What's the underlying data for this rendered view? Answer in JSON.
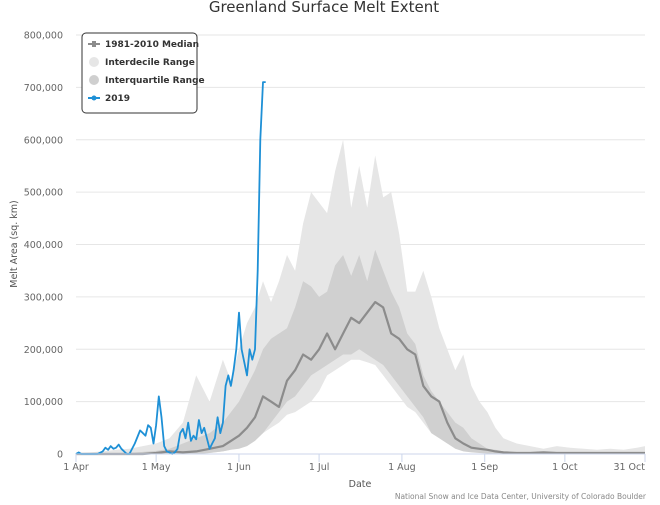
{
  "chart_data": {
    "type": "line",
    "title": "Greenland Surface Melt Extent",
    "xlabel": "Date",
    "ylabel": "Melt Area (sq. km)",
    "credit": "National Snow and Ice Data Center, University of Colorado Boulder",
    "x_unit": "days since 1 Apr",
    "xlim": [
      0,
      213
    ],
    "ylim": [
      0,
      800000
    ],
    "x_ticks": [
      {
        "day": 0,
        "label": "1 Apr"
      },
      {
        "day": 30,
        "label": "1 May"
      },
      {
        "day": 61,
        "label": "1 Jun"
      },
      {
        "day": 91,
        "label": "1 Jul"
      },
      {
        "day": 122,
        "label": "1 Aug"
      },
      {
        "day": 153,
        "label": "1 Sep"
      },
      {
        "day": 183,
        "label": "1 Oct"
      },
      {
        "day": 213,
        "label": "31 Oct"
      }
    ],
    "y_ticks": [
      {
        "value": 0,
        "label": "0"
      },
      {
        "value": 100000,
        "label": "100,000"
      },
      {
        "value": 200000,
        "label": "200,000"
      },
      {
        "value": 300000,
        "label": "300,000"
      },
      {
        "value": 400000,
        "label": "400,000"
      },
      {
        "value": 500000,
        "label": "500,000"
      },
      {
        "value": 600000,
        "label": "600,000"
      },
      {
        "value": 700000,
        "label": "700,000"
      },
      {
        "value": 800000,
        "label": "800,000"
      }
    ],
    "grid": true,
    "legend": {
      "position": "top-left",
      "entries": [
        {
          "label": "1981-2010 Median",
          "color": "#8c8c8c",
          "symbol": "line-marker"
        },
        {
          "label": "Interdecile Range",
          "color": "#e6e6e6",
          "symbol": "circle"
        },
        {
          "label": "Interquartile Range",
          "color": "#cfcfcf",
          "symbol": "circle"
        },
        {
          "label": "2019",
          "color": "#1e90d6",
          "symbol": "line-marker"
        }
      ]
    },
    "colors": {
      "interdecile": "#e6e6e6",
      "interquartile": "#d0d0d0",
      "median": "#8c8c8c",
      "y2019": "#1e90d6",
      "grid": "#e6e6e6",
      "axis": "#ccd6eb"
    },
    "days": [
      0,
      5,
      10,
      15,
      20,
      25,
      30,
      35,
      40,
      45,
      50,
      55,
      58,
      61,
      64,
      67,
      70,
      73,
      76,
      79,
      82,
      85,
      88,
      91,
      94,
      97,
      100,
      103,
      106,
      109,
      112,
      115,
      118,
      121,
      124,
      127,
      130,
      133,
      136,
      139,
      142,
      145,
      148,
      151,
      154,
      157,
      160,
      165,
      170,
      175,
      180,
      185,
      190,
      195,
      200,
      205,
      210,
      213
    ],
    "series": [
      {
        "name": "Interdecile Range",
        "kind": "band",
        "low": [
          0,
          0,
          0,
          0,
          0,
          0,
          0,
          0,
          0,
          0,
          2000,
          5000,
          8000,
          12000,
          20000,
          30000,
          40000,
          50000,
          60000,
          75000,
          80000,
          90000,
          100000,
          120000,
          150000,
          160000,
          170000,
          180000,
          180000,
          175000,
          170000,
          150000,
          130000,
          110000,
          90000,
          80000,
          60000,
          40000,
          30000,
          20000,
          15000,
          10000,
          5000,
          3000,
          2000,
          1000,
          0,
          0,
          0,
          0,
          0,
          0,
          0,
          0,
          0,
          0,
          0,
          0
        ],
        "high": [
          2000,
          3000,
          5000,
          8000,
          10000,
          15000,
          20000,
          30000,
          60000,
          150000,
          100000,
          180000,
          140000,
          200000,
          250000,
          280000,
          330000,
          290000,
          330000,
          380000,
          350000,
          440000,
          500000,
          480000,
          460000,
          540000,
          600000,
          470000,
          550000,
          470000,
          570000,
          490000,
          500000,
          420000,
          310000,
          310000,
          350000,
          300000,
          240000,
          200000,
          160000,
          190000,
          130000,
          100000,
          80000,
          50000,
          30000,
          20000,
          15000,
          10000,
          15000,
          12000,
          10000,
          8000,
          10000,
          8000,
          12000,
          15000
        ]
      },
      {
        "name": "Interquartile Range",
        "kind": "band",
        "low": [
          0,
          0,
          0,
          0,
          0,
          0,
          0,
          0,
          0,
          0,
          2000,
          5000,
          8000,
          10000,
          15000,
          25000,
          40000,
          60000,
          80000,
          100000,
          110000,
          130000,
          150000,
          160000,
          170000,
          180000,
          190000,
          190000,
          200000,
          190000,
          180000,
          170000,
          150000,
          130000,
          110000,
          90000,
          70000,
          40000,
          30000,
          20000,
          10000,
          5000,
          3000,
          2000,
          1000,
          0,
          0,
          0,
          0,
          0,
          0,
          0,
          0,
          0,
          0,
          0,
          0,
          0
        ],
        "high": [
          0,
          0,
          0,
          0,
          2000,
          4000,
          6000,
          10000,
          20000,
          30000,
          40000,
          60000,
          80000,
          100000,
          130000,
          160000,
          200000,
          220000,
          230000,
          240000,
          280000,
          330000,
          320000,
          300000,
          310000,
          360000,
          380000,
          340000,
          380000,
          330000,
          390000,
          350000,
          310000,
          280000,
          230000,
          210000,
          150000,
          120000,
          100000,
          80000,
          60000,
          50000,
          30000,
          20000,
          10000,
          8000,
          5000,
          3000,
          2000,
          2000,
          2000,
          2000,
          2000,
          2000,
          2000,
          2000,
          2000,
          2000
        ]
      },
      {
        "name": "1981-2010 Median",
        "kind": "line",
        "values": [
          0,
          0,
          0,
          0,
          0,
          0,
          2000,
          5000,
          3000,
          5000,
          10000,
          15000,
          25000,
          35000,
          50000,
          70000,
          110000,
          100000,
          90000,
          140000,
          160000,
          190000,
          180000,
          200000,
          230000,
          200000,
          230000,
          260000,
          250000,
          270000,
          290000,
          280000,
          230000,
          220000,
          200000,
          190000,
          130000,
          110000,
          100000,
          60000,
          30000,
          20000,
          12000,
          10000,
          8000,
          5000,
          3000,
          2000,
          2000,
          3000,
          2000,
          2000,
          2000,
          2000,
          2000,
          2000,
          2000,
          2000
        ]
      },
      {
        "name": "2019",
        "kind": "line",
        "days": [
          0,
          1,
          2,
          4,
          6,
          8,
          10,
          11,
          12,
          13,
          14,
          15,
          16,
          17,
          18,
          19,
          20,
          22,
          24,
          26,
          27,
          28,
          29,
          30,
          31,
          32,
          33,
          34,
          35,
          36,
          37,
          38,
          39,
          40,
          41,
          42,
          43,
          44,
          45,
          46,
          47,
          48,
          49,
          50,
          51,
          52,
          53,
          54,
          55,
          56,
          57,
          58,
          59,
          60,
          61,
          62,
          63,
          64,
          65,
          66,
          67,
          68,
          69,
          70,
          71
        ],
        "values": [
          0,
          3000,
          0,
          0,
          0,
          0,
          5000,
          12000,
          8000,
          15000,
          10000,
          12000,
          18000,
          10000,
          5000,
          0,
          0,
          20000,
          45000,
          35000,
          55000,
          50000,
          20000,
          55000,
          110000,
          70000,
          15000,
          5000,
          3000,
          0,
          3000,
          10000,
          40000,
          48000,
          30000,
          60000,
          25000,
          35000,
          28000,
          65000,
          40000,
          50000,
          30000,
          10000,
          20000,
          30000,
          70000,
          40000,
          60000,
          130000,
          150000,
          130000,
          160000,
          200000,
          270000,
          200000,
          175000,
          150000,
          200000,
          180000,
          200000,
          350000,
          600000,
          710000,
          710000
        ]
      }
    ]
  }
}
